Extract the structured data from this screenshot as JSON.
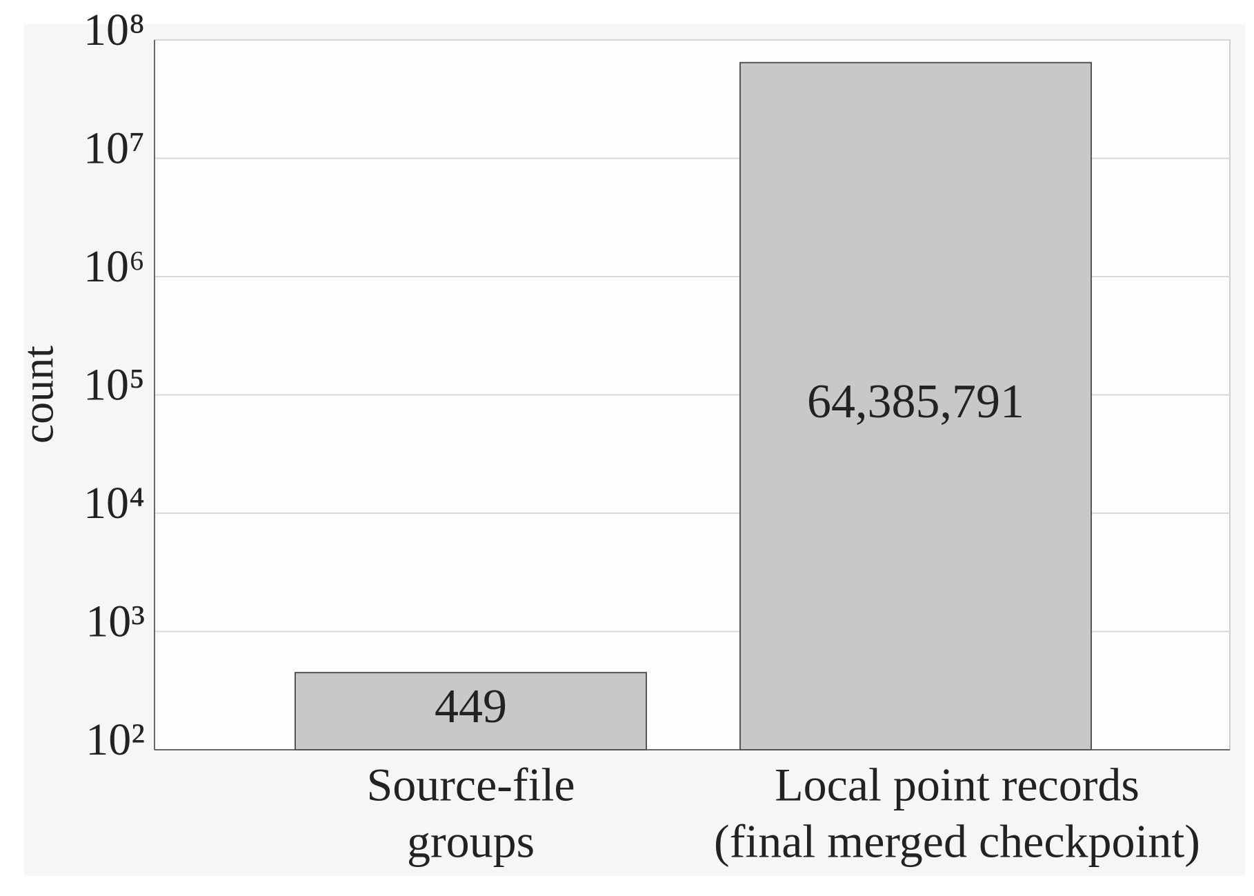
{
  "chart_data": {
    "type": "bar",
    "log_scale": true,
    "grid": true,
    "color": "#c8c8c8",
    "ylabel": "count",
    "categories": [
      [
        "Source-file",
        "groups"
      ],
      [
        "Local point records",
        "(final merged checkpoint)"
      ]
    ],
    "values": [
      449,
      64385791
    ],
    "value_labels": [
      "449",
      "64,385,791"
    ],
    "ylim": [
      100,
      100000000
    ],
    "yticks": [
      {
        "value": 100,
        "label": "10²"
      },
      {
        "value": 1000,
        "label": "10³"
      },
      {
        "value": 10000,
        "label": "10⁴"
      },
      {
        "value": 100000,
        "label": "10⁵"
      },
      {
        "value": 1000000,
        "label": "10⁶"
      },
      {
        "value": 10000000,
        "label": "10⁷"
      },
      {
        "value": 100000000,
        "label": "10⁸"
      }
    ]
  }
}
